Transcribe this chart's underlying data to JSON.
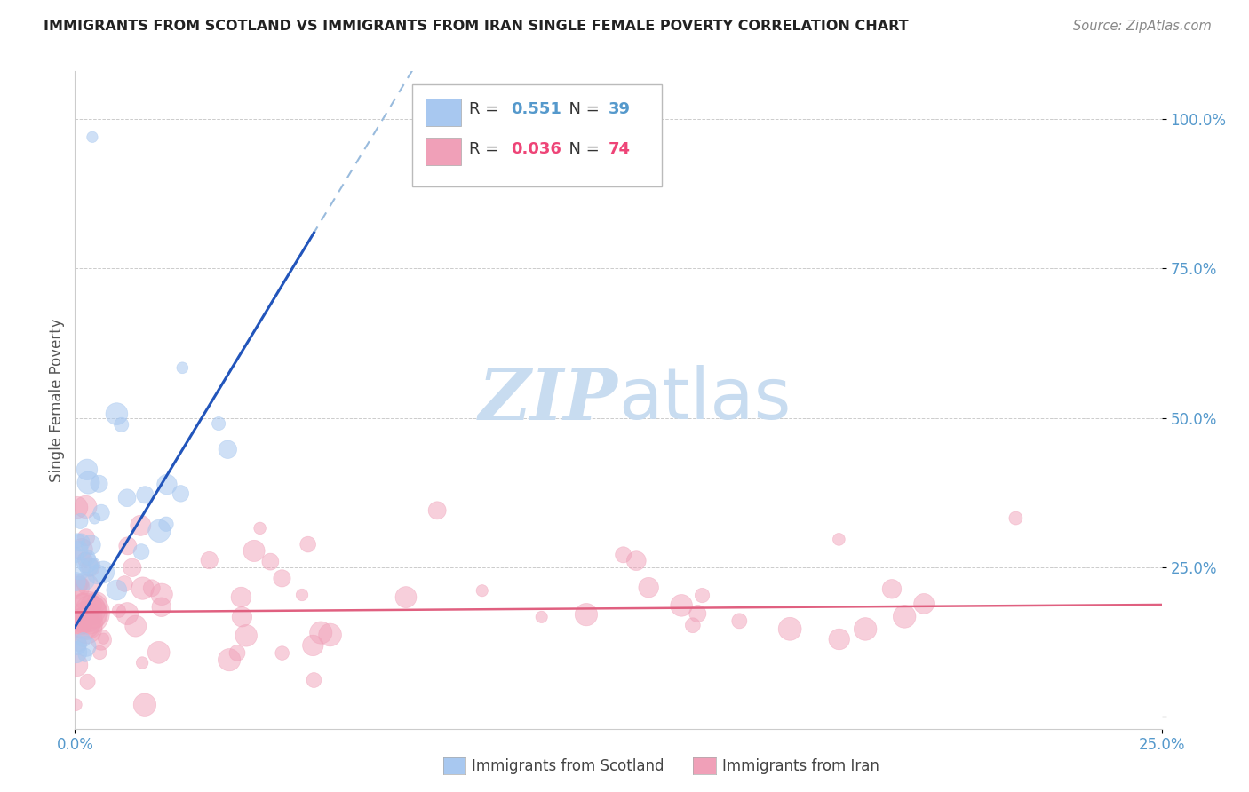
{
  "title": "IMMIGRANTS FROM SCOTLAND VS IMMIGRANTS FROM IRAN SINGLE FEMALE POVERTY CORRELATION CHART",
  "source": "Source: ZipAtlas.com",
  "ylabel": "Single Female Poverty",
  "legend_label_1": "Immigrants from Scotland",
  "legend_label_2": "Immigrants from Iran",
  "R1": "0.551",
  "N1": "39",
  "R2": "0.036",
  "N2": "74",
  "color_scotland": "#A8C8F0",
  "color_iran": "#F0A0B8",
  "color_line_scotland": "#2255BB",
  "color_line_iran": "#E06080",
  "color_dash": "#99BBDD",
  "xlim": [
    0.0,
    0.25
  ],
  "ylim": [
    -0.02,
    1.08
  ],
  "bg_color": "#FFFFFF",
  "watermark_zip": "ZIP",
  "watermark_atlas": "atlas",
  "watermark_color": "#C8DCF0",
  "grid_color": "#CCCCCC",
  "tick_color": "#5599CC",
  "title_color": "#222222",
  "source_color": "#888888",
  "ylabel_color": "#555555"
}
